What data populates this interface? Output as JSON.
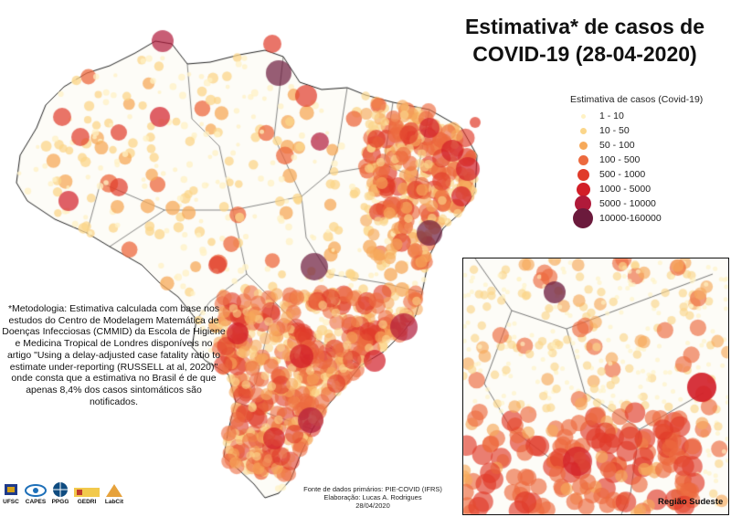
{
  "title": {
    "line1": "Estimativa* de casos de",
    "line2": "COVID-19 (28-04-2020)"
  },
  "legend": {
    "title": "Estimativa de casos (Covid-19)",
    "items": [
      {
        "label": "1 - 10",
        "color": "#fff2c4"
      },
      {
        "label": "10 - 50",
        "color": "#fbd68a"
      },
      {
        "label": "50 - 100",
        "color": "#f6a95a"
      },
      {
        "label": "100 - 500",
        "color": "#ec6a3f"
      },
      {
        "label": "500 - 1000",
        "color": "#e03b2a"
      },
      {
        "label": "1000 - 5000",
        "color": "#d21e28"
      },
      {
        "label": "5000 - 10000",
        "color": "#b01a3a"
      },
      {
        "label": "10000-160000",
        "color": "#6b1a3c"
      }
    ]
  },
  "methodology": "*Metodologia: Estimativa calculada com base nos estudos do  Centro de Modelagem Matemática de Doenças Infecciosas (CMMID) da Escola de Higiene e Medicina Tropical de Londres disponíveis no artigo \"Using a delay-adjusted case fatality ratio to estimate under-reporting (RUSSELL at al, 2020)\" onde consta que a estimativa no Brasil é de que apenas 8,4% dos casos sintomáticos são notificados.",
  "inset_label": "Região Sudeste",
  "credits": {
    "source": "Fonte de dados primários: PIE-COVID (IFRS)",
    "author": "Elaboração: Lucas A. Rodrigues",
    "date": "28/04/2020"
  },
  "logos": {
    "ufsc": "UFSC",
    "capes": "CAPES",
    "ppgg": "PPGG",
    "gedri": "GEDRI",
    "labcit": "LabCit"
  }
}
